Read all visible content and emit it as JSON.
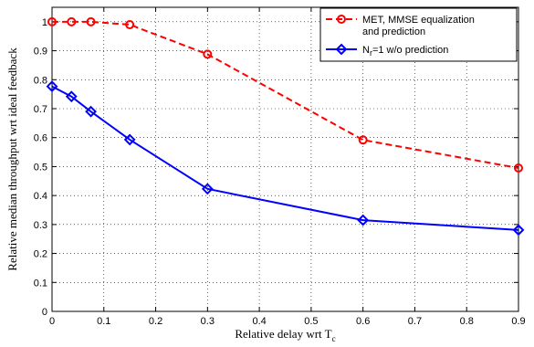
{
  "chart_data": {
    "type": "line",
    "xlabel": "Relative delay wrt T",
    "xlabel_subscript": "c",
    "ylabel": "Relative median throughput wrt ideal feedback",
    "xlim": [
      0,
      0.9
    ],
    "ylim": [
      0,
      1.05
    ],
    "xticks": [
      0,
      0.1,
      0.2,
      0.3,
      0.4,
      0.5,
      0.6,
      0.7,
      0.8,
      0.9
    ],
    "xtick_labels": [
      "0",
      "0.1",
      "0.2",
      "0.3",
      "0.4",
      "0.5",
      "0.6",
      "0.7",
      "0.8",
      "0.9"
    ],
    "yticks": [
      0,
      0.1,
      0.2,
      0.3,
      0.4,
      0.5,
      0.6,
      0.7,
      0.8,
      0.9,
      1
    ],
    "ytick_labels": [
      "0",
      "0.1",
      "0.2",
      "0.3",
      "0.4",
      "0.5",
      "0.6",
      "0.7",
      "0.8",
      "0.9",
      "1"
    ],
    "grid": true,
    "legend_position": "top-right",
    "series": [
      {
        "name_lines": [
          "MET, MMSE equalization",
          "and prediction"
        ],
        "color": "#ff0000",
        "line_style": "dashed",
        "marker": "circle",
        "x": [
          0,
          0.0375,
          0.075,
          0.15,
          0.3,
          0.6,
          0.9
        ],
        "y": [
          1.0,
          1.0,
          1.0,
          0.99,
          0.888,
          0.592,
          0.495
        ]
      },
      {
        "name_parts": [
          "N",
          "r",
          "=1 w/o prediction"
        ],
        "color": "#0000ff",
        "line_style": "solid",
        "marker": "diamond",
        "x": [
          0,
          0.0375,
          0.075,
          0.15,
          0.3,
          0.6,
          0.9
        ],
        "y": [
          0.777,
          0.742,
          0.69,
          0.593,
          0.423,
          0.315,
          0.281
        ]
      }
    ]
  }
}
